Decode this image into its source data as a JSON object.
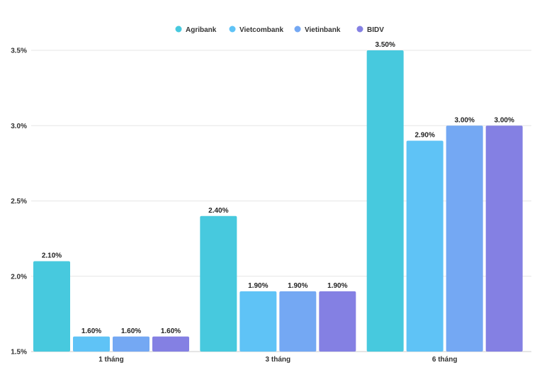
{
  "chart_data": {
    "type": "bar",
    "categories": [
      "1 tháng",
      "3 tháng",
      "6 tháng"
    ],
    "series": [
      {
        "name": "Agribank",
        "color": "#47c9de",
        "values": [
          2.1,
          2.4,
          3.5
        ],
        "labels": [
          "2.10%",
          "2.40%",
          "3.50%"
        ]
      },
      {
        "name": "Vietcombank",
        "color": "#5fc3f6",
        "values": [
          1.6,
          1.9,
          2.9
        ],
        "labels": [
          "1.60%",
          "1.90%",
          "2.90%"
        ]
      },
      {
        "name": "Vietinbank",
        "color": "#74a8f3",
        "values": [
          1.6,
          1.9,
          3.0
        ],
        "labels": [
          "1.60%",
          "1.90%",
          "3.00%"
        ]
      },
      {
        "name": "BIDV",
        "color": "#8480e3",
        "values": [
          1.6,
          1.9,
          3.0
        ],
        "labels": [
          "1.60%",
          "1.90%",
          "3.00%"
        ]
      }
    ],
    "y_ticks": [
      "1.5%",
      "2.0%",
      "2.5%",
      "3.0%",
      "3.5%"
    ],
    "y_tick_values": [
      1.5,
      2.0,
      2.5,
      3.0,
      3.5
    ],
    "ylim": [
      1.5,
      3.5
    ],
    "legend_position": "top-center",
    "grid": true
  }
}
